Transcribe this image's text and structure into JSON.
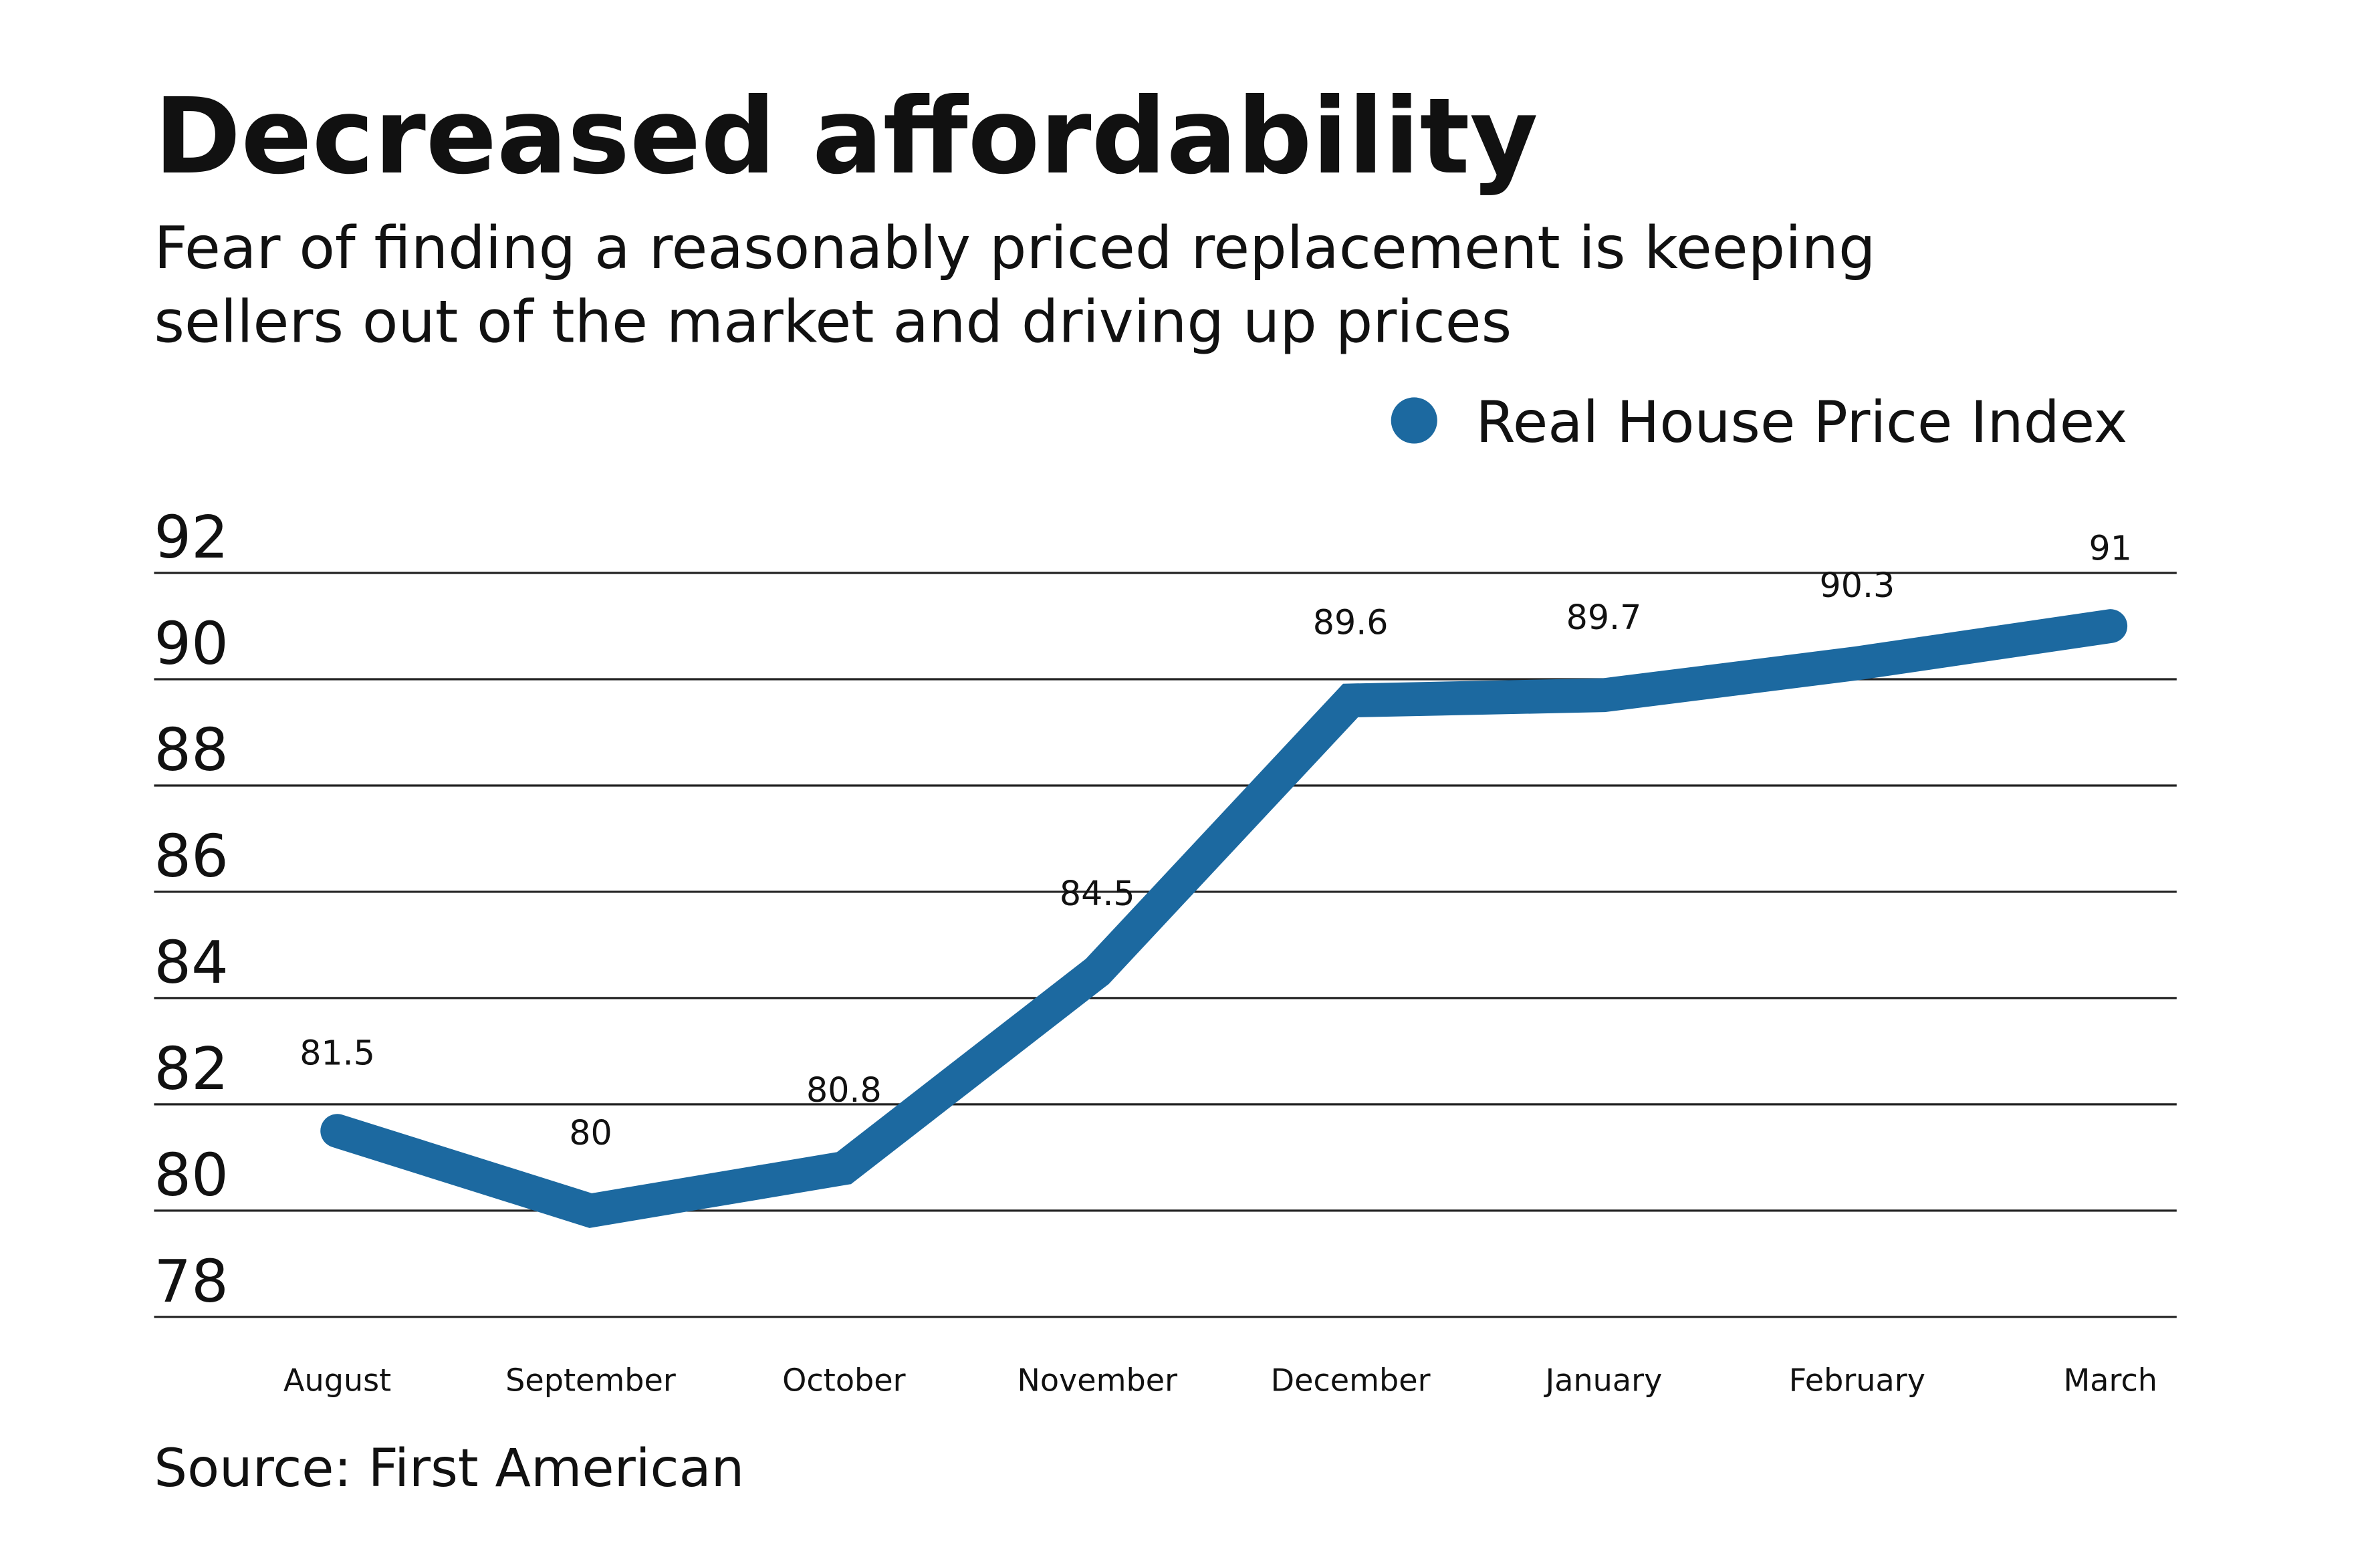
{
  "chart_data": {
    "type": "line",
    "title": "Decreased affordability",
    "subtitle_lines": [
      "Fear of finding a reasonably priced replacement is keeping",
      "sellers out of the market and driving up prices"
    ],
    "source": "Source: First American",
    "legend": {
      "entries": [
        {
          "label": "Real House Price Index",
          "color": "#1c69a0"
        }
      ],
      "placement": "top-right"
    },
    "xlabel": "",
    "ylabel": "",
    "ylim": [
      78,
      92
    ],
    "yticks": [
      78,
      80,
      82,
      84,
      86,
      88,
      90,
      92
    ],
    "grid": true,
    "categories": [
      "August",
      "September",
      "October",
      "November",
      "December",
      "January",
      "February",
      "March"
    ],
    "series": [
      {
        "name": "Real House Price Index",
        "color": "#1c69a0",
        "values": [
          81.5,
          80,
          80.8,
          84.5,
          89.6,
          89.7,
          90.3,
          91
        ],
        "labels": [
          "81.5",
          "80",
          "80.8",
          "84.5",
          "89.6",
          "89.7",
          "90.3",
          "91"
        ]
      }
    ]
  }
}
